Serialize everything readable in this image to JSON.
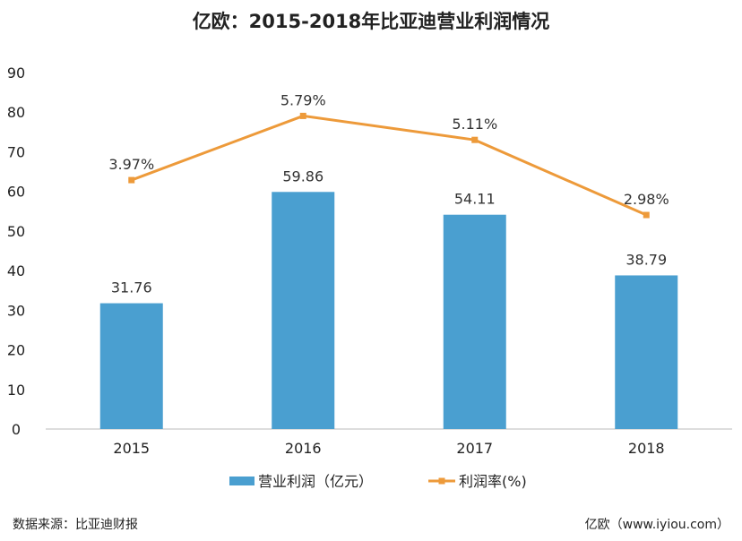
{
  "chart_data": {
    "type": "bar",
    "title": "亿欧：2015-2018年比亚迪营业利润情况",
    "categories": [
      "2015",
      "2016",
      "2017",
      "2018"
    ],
    "series": [
      {
        "name": "营业利润（亿元）",
        "type": "bar",
        "axis": "left",
        "values": [
          31.76,
          59.86,
          54.11,
          38.79
        ],
        "labels": [
          "31.76",
          "59.86",
          "54.11",
          "38.79"
        ],
        "color": "#4a9fd0"
      },
      {
        "name": "利润率(%)",
        "type": "line",
        "axis": "right-hidden",
        "values": [
          3.97,
          5.79,
          5.11,
          2.98
        ],
        "labels": [
          "3.97%",
          "5.79%",
          "5.11%",
          "2.98%"
        ],
        "color": "#ed9a3a"
      }
    ],
    "ylim": [
      0,
      90
    ],
    "yticks": [
      "0",
      "10",
      "20",
      "30",
      "40",
      "50",
      "60",
      "70",
      "80",
      "90"
    ],
    "y2lim": [
      -3.09,
      7.02
    ],
    "grid": false,
    "legend": "bottom"
  },
  "footer": {
    "source": "数据来源：比亚迪财报",
    "credit": "亿欧（www.iyiou.com）"
  }
}
